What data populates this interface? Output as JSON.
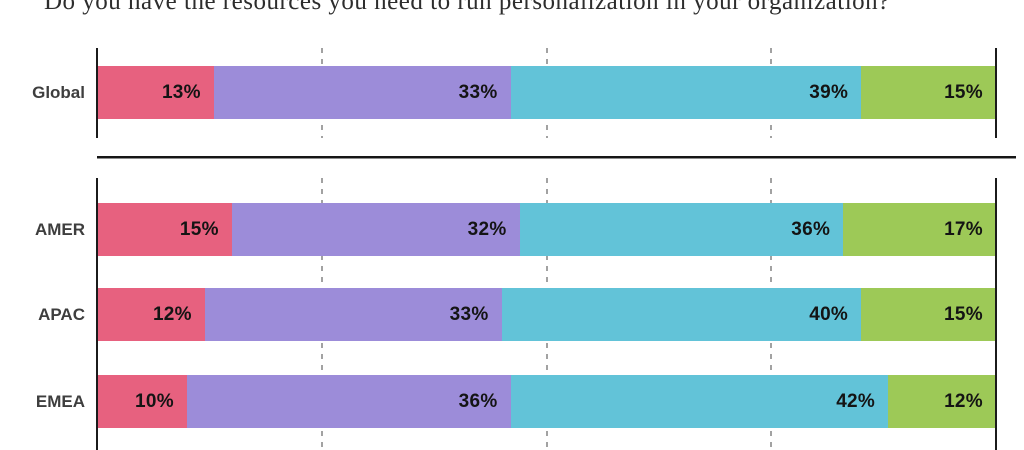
{
  "colors": {
    "background": "#ffffff",
    "axis": "#1b1b1b",
    "gridline": "#a2a2a2",
    "row_label_text": "#3e3e3e",
    "value_label_text": "#141414",
    "title_text": "#2d2d2d"
  },
  "chart_data": {
    "type": "bar",
    "stacked": true,
    "orientation": "horizontal",
    "title": "Do you have the resources you need to run personalization in your organization?",
    "value_suffix": "%",
    "xlim": [
      0,
      100
    ],
    "gridlines_pct": [
      25,
      50,
      75
    ],
    "grid": "dashed-vertical-quarters",
    "legend": "none",
    "series": [
      {
        "name": "series-1",
        "color": "#E7617F"
      },
      {
        "name": "series-2",
        "color": "#9C8CD9"
      },
      {
        "name": "series-3",
        "color": "#62C3D8"
      },
      {
        "name": "series-4",
        "color": "#9DC957"
      }
    ],
    "groups": [
      {
        "name": "global",
        "rows": [
          {
            "label": "Global",
            "values": [
              13,
              33,
              39,
              15
            ]
          }
        ]
      },
      {
        "name": "regions",
        "rows": [
          {
            "label": "AMER",
            "values": [
              15,
              32,
              36,
              17
            ]
          },
          {
            "label": "APAC",
            "values": [
              12,
              33,
              40,
              15
            ]
          },
          {
            "label": "EMEA",
            "values": [
              10,
              36,
              42,
              12
            ]
          }
        ]
      }
    ]
  }
}
